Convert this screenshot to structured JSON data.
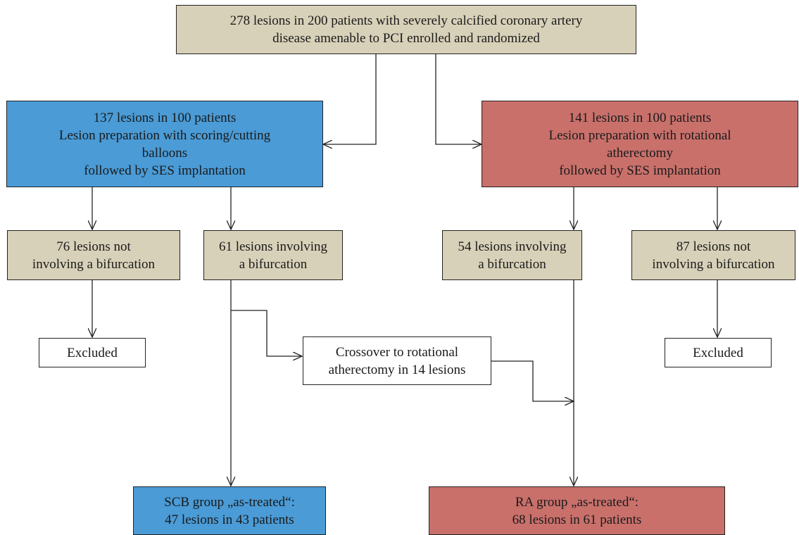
{
  "flowchart": {
    "enrollment": {
      "lines": [
        "278 lesions in 200 patients with severely calcified coronary artery",
        "disease amenable to PCI enrolled and randomized"
      ]
    },
    "scb_arm": {
      "lines": [
        "137 lesions in 100 patients",
        "Lesion preparation with scoring/cutting",
        "balloons",
        "followed by SES implantation"
      ]
    },
    "ra_arm": {
      "lines": [
        "141 lesions in 100 patients",
        "Lesion preparation with rotational",
        "atherectomy",
        "followed by SES implantation"
      ]
    },
    "scb_non_bifurcation": {
      "lines": [
        "76 lesions not",
        "involving a bifurcation"
      ]
    },
    "scb_bifurcation": {
      "lines": [
        "61 lesions involving",
        "a bifurcation"
      ]
    },
    "ra_bifurcation": {
      "lines": [
        "54 lesions involving",
        "a bifurcation"
      ]
    },
    "ra_non_bifurcation": {
      "lines": [
        "87 lesions not",
        "involving a bifurcation"
      ]
    },
    "scb_excluded": {
      "label": "Excluded"
    },
    "ra_excluded": {
      "label": "Excluded"
    },
    "crossover": {
      "lines": [
        "Crossover to rotational",
        "atherectomy in 14 lesions"
      ]
    },
    "scb_as_treated": {
      "lines": [
        "SCB group „as-treated“:",
        "47 lesions in 43 patients"
      ]
    },
    "ra_as_treated": {
      "lines": [
        "RA group „as-treated“:",
        "68 lesions in 61 patients"
      ]
    },
    "colors": {
      "scb": "#4a9bd6",
      "ra": "#c9706b",
      "neutral": "#d8d1b9"
    }
  }
}
